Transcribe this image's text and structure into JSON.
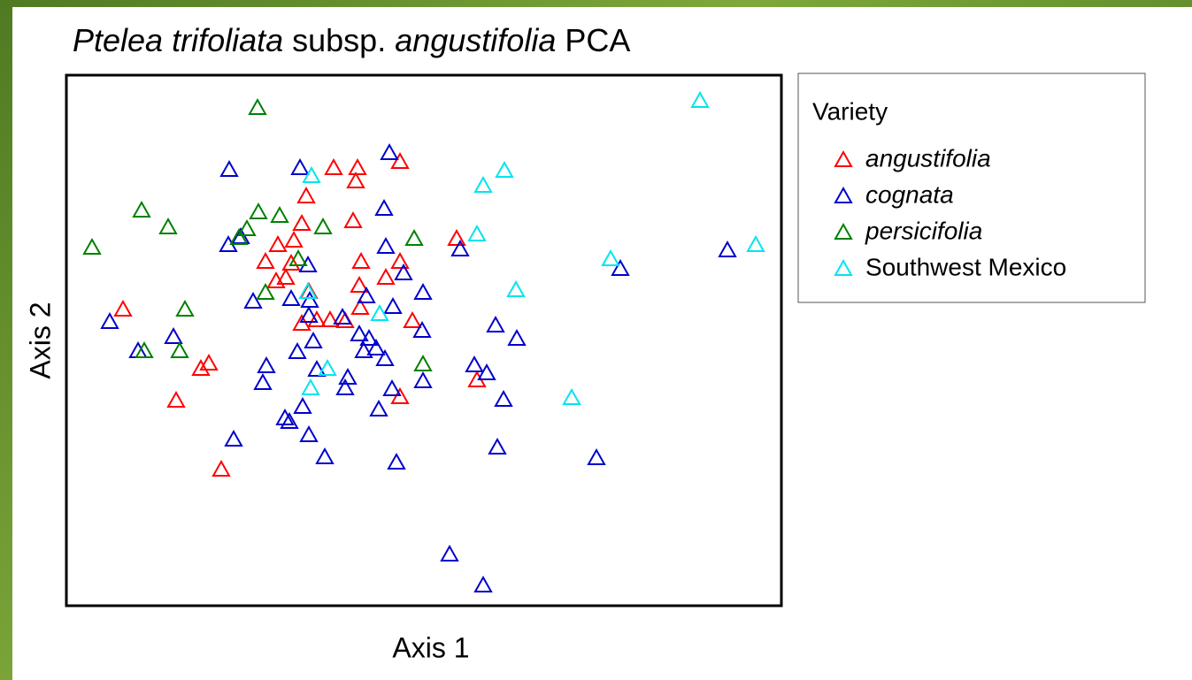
{
  "chart_data": {
    "type": "scatter",
    "title": [
      "Ptelea trifoliata",
      "subsp.",
      "angustifolia",
      "PCA"
    ],
    "title_italic": [
      true,
      false,
      true,
      false
    ],
    "x_label": "Axis 1",
    "y_label": "Axis 2",
    "legend_title": "Variety",
    "legend": "outside-right",
    "xlim": [
      0,
      808
    ],
    "ylim": [
      0,
      600
    ],
    "marker": "open-triangle",
    "series": [
      {
        "name": "angustifolia",
        "italic": true,
        "color": "#ff0000",
        "x": [
          302,
          329,
          377,
          327,
          271,
          266,
          324,
          257,
          239,
          441,
          225,
          254,
          333,
          377,
          248,
          237,
          274,
          331,
          361,
          64,
          332,
          266,
          283,
          298,
          315,
          391,
          161,
          152,
          464,
          124,
          377,
          175
        ],
        "values": [
          495,
          495,
          502,
          480,
          463,
          432,
          435,
          413,
          408,
          415,
          389,
          387,
          389,
          389,
          371,
          367,
          355,
          362,
          371,
          335,
          337,
          319,
          323,
          323,
          322,
          322,
          274,
          268,
          255,
          232,
          236,
          154
        ]
      },
      {
        "name": "cognata",
        "italic": true,
        "color": "#0000cc",
        "x": [
          365,
          184,
          264,
          359,
          183,
          361,
          445,
          197,
          273,
          381,
          626,
          747,
          403,
          211,
          254,
          275,
          339,
          369,
          49,
          121,
          274,
          312,
          485,
          402,
          509,
          279,
          331,
          342,
          261,
          336,
          350,
          81,
          360,
          461,
          475,
          226,
          222,
          318,
          315,
          403,
          368,
          283,
          267,
          353,
          494,
          247,
          252,
          274,
          189,
          292,
          373,
          487,
          599,
          433,
          471
        ],
        "values": [
          512,
          493,
          495,
          449,
          408,
          406,
          403,
          417,
          385,
          376,
          381,
          402,
          354,
          344,
          347,
          345,
          350,
          338,
          321,
          304,
          328,
          326,
          317,
          311,
          302,
          299,
          307,
          302,
          287,
          288,
          291,
          288,
          279,
          272,
          263,
          271,
          252,
          258,
          246,
          254,
          245,
          267,
          225,
          222,
          233,
          212,
          208,
          193,
          188,
          168,
          162,
          179,
          167,
          58,
          23
        ]
      },
      {
        "name": "persicifolia",
        "italic": true,
        "color": "#008000",
        "x": [
          216,
          85,
          115,
          217,
          241,
          204,
          195,
          290,
          393,
          29,
          262,
          225,
          134,
          88,
          128,
          403
        ],
        "values": [
          563,
          447,
          428,
          445,
          441,
          426,
          416,
          428,
          415,
          405,
          392,
          354,
          335,
          288,
          288,
          273
        ]
      },
      {
        "name": "Southwest Mexico",
        "italic": false,
        "color": "#00e5ee",
        "x": [
          716,
          277,
          495,
          471,
          464,
          615,
          508,
          354,
          273,
          295,
          276,
          571,
          779
        ],
        "values": [
          571,
          486,
          492,
          475,
          420,
          392,
          357,
          330,
          355,
          268,
          246,
          235,
          408
        ]
      }
    ]
  }
}
